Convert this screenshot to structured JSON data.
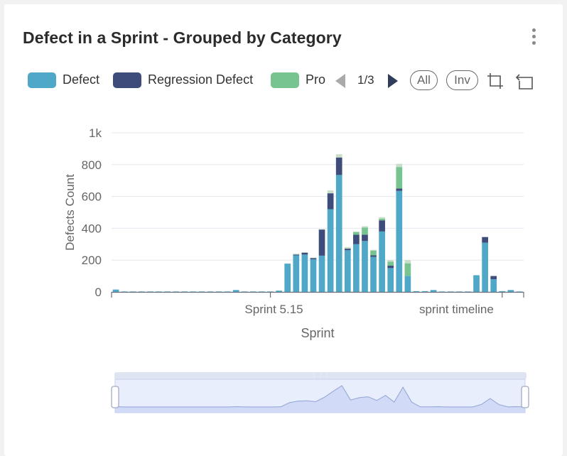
{
  "title": "Defect in a Sprint - Grouped by Category",
  "legend": {
    "items": [
      {
        "label": "Defect",
        "color": "#4fa8c8"
      },
      {
        "label": "Regression Defect",
        "color": "#3e4c7c"
      },
      {
        "label": "Pro",
        "color": "#77c490"
      }
    ],
    "page": "1/3",
    "all_label": "All",
    "inv_label": "Inv"
  },
  "icons": [
    "more-vertical-icon",
    "prev-page-icon",
    "next-page-icon",
    "crop-icon",
    "undo-icon"
  ],
  "chart_data": {
    "type": "bar",
    "title": "Defect in a Sprint - Grouped by Category",
    "xlabel": "Sprint",
    "ylabel": "Defects Count",
    "ylim": [
      0,
      1000
    ],
    "yticks": [
      "0",
      "200",
      "400",
      "600",
      "800",
      "1k"
    ],
    "xticks": [
      "Sprint 5.15",
      "sprint timeline"
    ],
    "grid": true,
    "legend_position": "top",
    "stacked": true,
    "colors": {
      "Defect": "#4fa8c8",
      "Regression Defect": "#3e4c7c",
      "Pro": "#77c490",
      "other": "#c7dfc9"
    },
    "series": [
      {
        "name": "Defect",
        "values": [
          15,
          3,
          3,
          3,
          3,
          3,
          3,
          3,
          3,
          3,
          3,
          3,
          3,
          3,
          12,
          3,
          3,
          3,
          3,
          8,
          178,
          230,
          235,
          205,
          228,
          520,
          735,
          262,
          300,
          320,
          220,
          380,
          150,
          635,
          100,
          5,
          5,
          12,
          3,
          3,
          3,
          3,
          105,
          310,
          80,
          5,
          12,
          3
        ]
      },
      {
        "name": "Regression Defect",
        "values": [
          0,
          0,
          0,
          0,
          0,
          0,
          0,
          0,
          0,
          0,
          0,
          0,
          0,
          0,
          0,
          0,
          0,
          0,
          0,
          0,
          0,
          5,
          12,
          8,
          165,
          100,
          110,
          10,
          60,
          40,
          10,
          70,
          15,
          15,
          0,
          0,
          0,
          0,
          0,
          0,
          0,
          0,
          0,
          35,
          20,
          0,
          0,
          0
        ]
      },
      {
        "name": "Pro",
        "values": [
          0,
          0,
          0,
          0,
          0,
          0,
          0,
          0,
          0,
          0,
          0,
          0,
          0,
          0,
          0,
          0,
          0,
          0,
          0,
          0,
          0,
          0,
          0,
          0,
          0,
          0,
          0,
          0,
          15,
          45,
          30,
          10,
          25,
          135,
          80,
          0,
          0,
          0,
          0,
          0,
          0,
          0,
          0,
          0,
          0,
          0,
          0,
          0
        ]
      },
      {
        "name": "",
        "values": [
          0,
          0,
          0,
          0,
          0,
          0,
          0,
          0,
          0,
          0,
          0,
          0,
          0,
          0,
          0,
          0,
          0,
          0,
          0,
          0,
          0,
          5,
          3,
          3,
          2,
          18,
          20,
          10,
          5,
          8,
          5,
          10,
          10,
          20,
          20,
          0,
          0,
          0,
          0,
          0,
          0,
          0,
          0,
          0,
          0,
          0,
          0,
          0
        ]
      }
    ]
  }
}
